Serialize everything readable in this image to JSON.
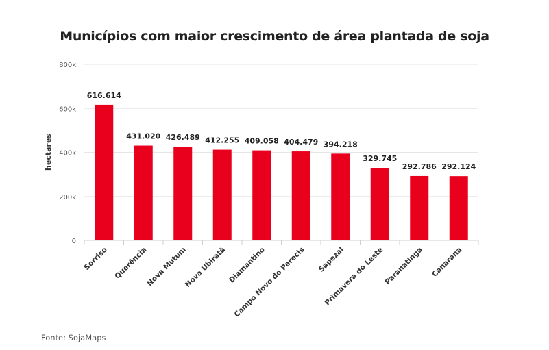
{
  "chart_data": {
    "type": "bar",
    "title": "Municípios com maior crescimento de área plantada de soja",
    "xlabel": "",
    "ylabel": "hectares",
    "categories": [
      "Sorriso",
      "Querência",
      "Nova Mutum",
      "Nova Ubiratã",
      "Diamantino",
      "Campo Novo do Parecis",
      "Sapezal",
      "Primavera do Leste",
      "Paranatinga",
      "Canarana"
    ],
    "values": [
      616614,
      431020,
      426489,
      412255,
      409058,
      404479,
      394218,
      329745,
      292786,
      292124
    ],
    "data_labels": [
      "616.614",
      "431.020",
      "426.489",
      "412.255",
      "409.058",
      "404.479",
      "394.218",
      "329.745",
      "292.786",
      "292.124"
    ],
    "ylim": [
      0,
      800000
    ],
    "yticks": [
      0,
      200000,
      400000,
      600000,
      800000
    ],
    "ytick_labels": [
      "0",
      "200k",
      "400k",
      "600k",
      "800k"
    ],
    "grid": true,
    "bar_color": "#e8001c",
    "source": "Fonte: SojaMaps"
  }
}
